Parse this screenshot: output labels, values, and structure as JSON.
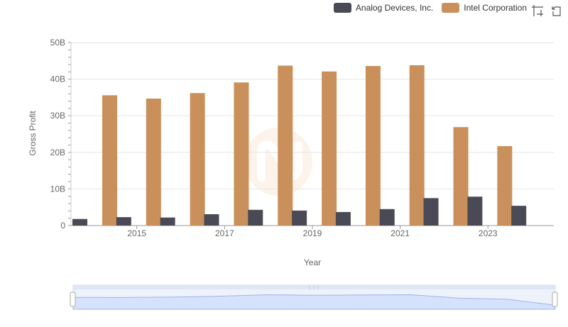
{
  "legend": {
    "items": [
      {
        "label": "Analog Devices, Inc.",
        "color": "#4a4a56"
      },
      {
        "label": "Intel Corporation",
        "color": "#c9905c"
      }
    ]
  },
  "toolbar": {
    "icons": [
      "zoom-icon",
      "reset-zoom-icon"
    ]
  },
  "chart_data": {
    "type": "bar",
    "xlabel": "Year",
    "ylabel": "Gross Profit",
    "categories": [
      "2014",
      "2015",
      "2016",
      "2017",
      "2018",
      "2019",
      "2020",
      "2021",
      "2022",
      "2023",
      "2024"
    ],
    "x_tick_labels": [
      "2015",
      "2017",
      "2019",
      "2021",
      "2023"
    ],
    "y_ticks": [
      0,
      10,
      20,
      30,
      40,
      50
    ],
    "y_tick_labels": [
      "0",
      "10B",
      "20B",
      "30B",
      "40B",
      "50B"
    ],
    "ylim": [
      0,
      50
    ],
    "grid": true,
    "legend_position": "top-right",
    "series": [
      {
        "name": "Analog Devices, Inc.",
        "color": "#4a4a56",
        "values": [
          1.8,
          2.3,
          2.2,
          3.1,
          4.3,
          4.1,
          3.7,
          4.5,
          7.5,
          7.9,
          5.4
        ]
      },
      {
        "name": "Intel Corporation",
        "color": "#c9905c",
        "values": [
          35.6,
          34.7,
          36.2,
          39.1,
          43.7,
          42.1,
          43.6,
          43.8,
          26.9,
          21.7,
          null
        ]
      }
    ]
  }
}
